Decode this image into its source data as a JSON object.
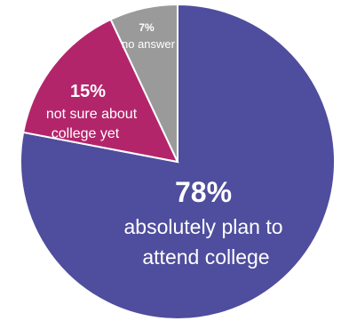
{
  "chart_data": {
    "type": "pie",
    "title": "",
    "slices": [
      {
        "value": 78,
        "percent_label": "78%",
        "label_lines": [
          "absolutely plan to",
          "attend college"
        ],
        "color": "#4F4D9D"
      },
      {
        "value": 15,
        "percent_label": "15%",
        "label_lines": [
          "not sure about",
          "college yet"
        ],
        "color": "#B3256B"
      },
      {
        "value": 7,
        "percent_label": "7%",
        "label_lines": [
          "no answer"
        ],
        "color": "#9A9A9A"
      }
    ],
    "start_angle_deg": 0,
    "direction": "clockwise",
    "slice_border_color": "#FFFFFF"
  }
}
